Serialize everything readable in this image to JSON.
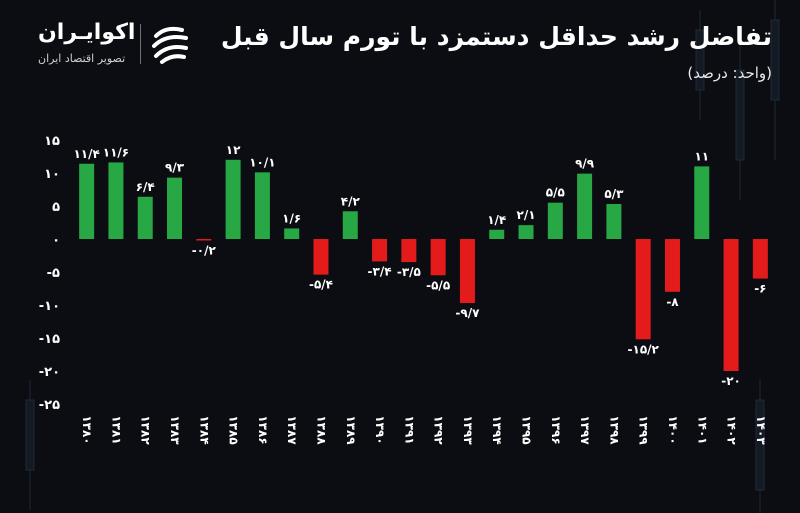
{
  "header": {
    "title": "تفاضل رشد حداقل دستمزد با تورم سال قبل",
    "subtitle": "(واحد: درصد)"
  },
  "logo": {
    "name": "اکوایـران",
    "tagline": "تصویر اقتصاد ایران"
  },
  "colors": {
    "positive": "#27a844",
    "negative": "#e31b1b",
    "background": "#0b0d12",
    "text": "#ffffff"
  },
  "chart_data": {
    "type": "bar",
    "categories": [
      "۱۳۸۰",
      "۱۳۸۱",
      "۱۳۸۲",
      "۱۳۸۳",
      "۱۳۸۴",
      "۱۳۸۵",
      "۱۳۸۶",
      "۱۳۸۷",
      "۱۳۸۸",
      "۱۳۸۹",
      "۱۳۹۰",
      "۱۳۹۱",
      "۱۳۹۲",
      "۱۳۹۳",
      "۱۳۹۴",
      "۱۳۹۵",
      "۱۳۹۶",
      "۱۳۹۷",
      "۱۳۹۸",
      "۱۳۹۹",
      "۱۴۰۰",
      "۱۴۰۱",
      "۱۴۰۲",
      "۱۴۰۳"
    ],
    "values": [
      11.4,
      11.6,
      6.4,
      9.3,
      -0.2,
      12,
      10.1,
      1.6,
      -5.4,
      4.2,
      -3.4,
      -3.5,
      -5.5,
      -9.7,
      1.4,
      2.1,
      5.5,
      9.9,
      5.3,
      -15.2,
      -8,
      11,
      -20,
      -6
    ],
    "value_labels": [
      "۱۱/۴",
      "۱۱/۶",
      "۶/۴",
      "۹/۳",
      "-۰/۲",
      "۱۲",
      "۱۰/۱",
      "۱/۶",
      "-۵/۴",
      "۴/۲",
      "-۳/۴",
      "-۳/۵",
      "-۵/۵",
      "-۹/۷",
      "۱/۴",
      "۲/۱",
      "۵/۵",
      "۹/۹",
      "۵/۳",
      "-۱۵/۲",
      "-۸",
      "۱۱",
      "-۲۰",
      "-۶"
    ],
    "yticks": [
      15,
      10,
      5,
      0,
      -5,
      -10,
      -15,
      -20,
      -25
    ],
    "ytick_labels": [
      "۱۵",
      "۱۰",
      "۵",
      "۰",
      "-۵",
      "-۱۰",
      "-۱۵",
      "-۲۰",
      "-۲۵"
    ],
    "ylim": [
      -25,
      15
    ],
    "grid": false,
    "legend": "none"
  }
}
